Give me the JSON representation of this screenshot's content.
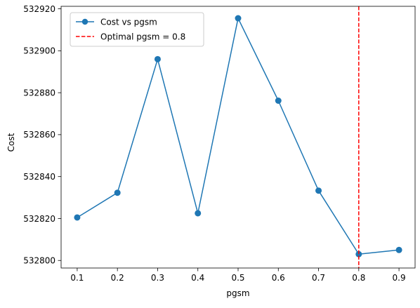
{
  "chart_data": {
    "type": "line",
    "title": "",
    "xlabel": "pgsm",
    "ylabel": "Cost",
    "x": [
      0.1,
      0.2,
      0.3,
      0.4,
      0.5,
      0.6,
      0.7,
      0.8,
      0.9
    ],
    "series": [
      {
        "name": "Cost vs pgsm",
        "color": "#1f77b4",
        "marker": "circle",
        "values": [
          532820.5,
          532832.3,
          532896.0,
          532822.5,
          532915.5,
          532876.2,
          532833.3,
          532803.0,
          532805.0
        ]
      }
    ],
    "reference_line": {
      "label": "Optimal pgsm = 0.8",
      "x": 0.8,
      "color": "#ff0000",
      "style": "dashed"
    },
    "xlim": [
      0.06,
      0.94
    ],
    "ylim": [
      532796.4,
      532921.2
    ],
    "xticks": [
      "0.1",
      "0.2",
      "0.3",
      "0.4",
      "0.5",
      "0.6",
      "0.7",
      "0.8",
      "0.9"
    ],
    "yticks": [
      "532800",
      "532820",
      "532840",
      "532860",
      "532880",
      "532900",
      "532920"
    ],
    "grid": false,
    "legend_position": "top-left"
  }
}
